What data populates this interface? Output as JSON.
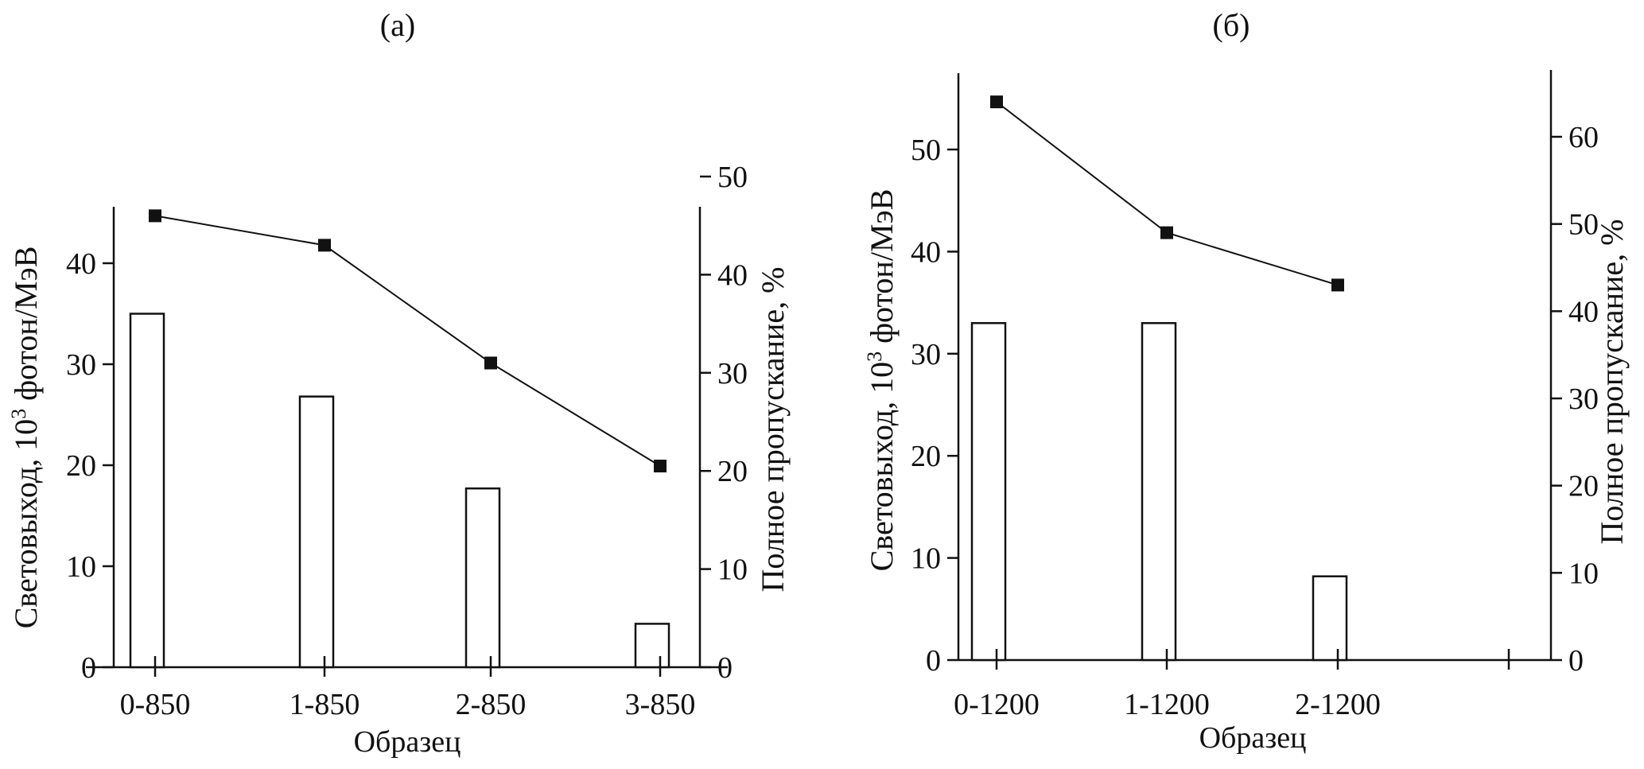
{
  "chart_data": [
    {
      "panel_label": "(а)",
      "type": "bar+line",
      "categories": [
        "0-850",
        "1-850",
        "2-850",
        "3-850"
      ],
      "xlabel": "Образец",
      "ylabel_left_pre": "Световыход, 10",
      "ylabel_left_sup": "3",
      "ylabel_left_post": " фотон/МэВ",
      "ylabel_right": "Полное пропускание, %",
      "ylim_left": [
        0,
        45
      ],
      "yticks_left": [
        0,
        10,
        20,
        30,
        40
      ],
      "ylim_right": [
        0,
        53
      ],
      "yticks_right": [
        0,
        10,
        20,
        30,
        40,
        50
      ],
      "bars": {
        "axis": "left",
        "values": [
          35,
          26.8,
          17.7,
          4.3
        ]
      },
      "line": {
        "axis": "right",
        "values": [
          46,
          43,
          31,
          20.5
        ]
      }
    },
    {
      "panel_label": "(б)",
      "type": "bar+line",
      "categories": [
        "0-1200",
        "1-1200",
        "2-1200",
        ""
      ],
      "xlabel": "Образец",
      "ylabel_left_pre": "Световыход, 10",
      "ylabel_left_sup": "3",
      "ylabel_left_post": " фотон/МэВ",
      "ylabel_right": "Полное пропускание, %",
      "ylim_left": [
        0,
        57
      ],
      "yticks_left": [
        0,
        10,
        20,
        30,
        40,
        50
      ],
      "ylim_right": [
        0,
        67.5
      ],
      "yticks_right": [
        0,
        10,
        20,
        30,
        40,
        50,
        60
      ],
      "bars": {
        "axis": "left",
        "values": [
          33,
          33,
          8.2
        ]
      },
      "line": {
        "axis": "right",
        "values": [
          64,
          49,
          43
        ]
      }
    }
  ]
}
